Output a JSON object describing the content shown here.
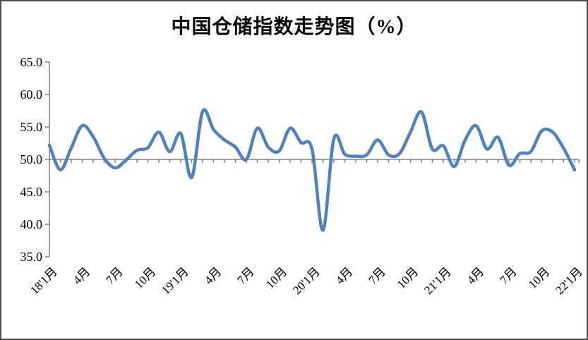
{
  "window": {
    "kind": "static-chart-image"
  },
  "chart_data": {
    "type": "line",
    "title": "中国仓储指数走势图（%）",
    "series_name": "中国仓储指数",
    "unit": "%",
    "ylim": [
      35.0,
      65.0
    ],
    "ytick_step": 5.0,
    "ytick_labels": [
      "65.0",
      "60.0",
      "55.0",
      "50.0",
      "45.0",
      "40.0",
      "35.0"
    ],
    "axis_crosses_at": 50.0,
    "grid": "none",
    "legend": "none",
    "smooth_line": true,
    "line_color": "#4F81BD",
    "axis_color": "#808080",
    "text_color": "#000000",
    "xtick_label_every_n_months": 3,
    "xtick_labels_visible": [
      "18'1月",
      "4月",
      "7月",
      "10月",
      "19'1月",
      "4月",
      "7月",
      "10月",
      "20'1月",
      "4月",
      "7月",
      "10月",
      "21'1月",
      "4月",
      "7月",
      "10月",
      "22'1月"
    ],
    "x_months": [
      "2018-01",
      "2018-02",
      "2018-03",
      "2018-04",
      "2018-05",
      "2018-06",
      "2018-07",
      "2018-08",
      "2018-09",
      "2018-10",
      "2018-11",
      "2018-12",
      "2019-01",
      "2019-02",
      "2019-03",
      "2019-04",
      "2019-05",
      "2019-06",
      "2019-07",
      "2019-08",
      "2019-09",
      "2019-10",
      "2019-11",
      "2019-12",
      "2020-01",
      "2020-02",
      "2020-03",
      "2020-04",
      "2020-05",
      "2020-06",
      "2020-07",
      "2020-08",
      "2020-09",
      "2020-10",
      "2020-11",
      "2020-12",
      "2021-01",
      "2021-02",
      "2021-03",
      "2021-04",
      "2021-05",
      "2021-06",
      "2021-07",
      "2021-08",
      "2021-09",
      "2021-10",
      "2021-11",
      "2021-12",
      "2022-01"
    ],
    "values": [
      52.2,
      48.4,
      51.8,
      55.2,
      53.5,
      50.2,
      48.7,
      49.9,
      51.4,
      51.8,
      54.2,
      51.2,
      54.0,
      47.2,
      57.4,
      54.6,
      53.0,
      51.9,
      50.0,
      54.8,
      51.9,
      51.3,
      54.8,
      52.6,
      51.6,
      39.1,
      53.2,
      50.8,
      50.5,
      50.7,
      53.0,
      50.7,
      50.9,
      54.2,
      57.3,
      51.6,
      52.1,
      48.9,
      53.0,
      55.2,
      51.6,
      53.4,
      49.1,
      50.9,
      51.2,
      54.4,
      54.2,
      51.7,
      48.4
    ]
  }
}
